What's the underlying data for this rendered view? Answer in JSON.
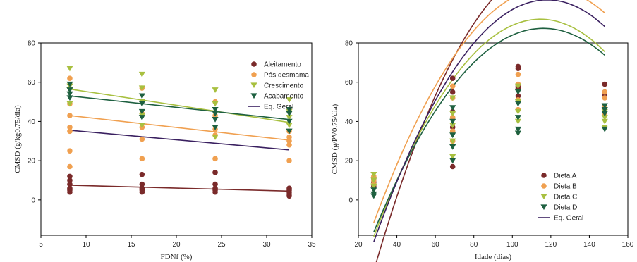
{
  "colors": {
    "dark_red": "#7a2a2a",
    "orange": "#f0a050",
    "yellow_green": "#a8c040",
    "dark_green": "#1e6040",
    "purple": "#3a2060"
  },
  "chart_data": [
    {
      "type": "scatter",
      "xlabel": "FDNf (%)",
      "ylabel": "CMSD (g/kg0.75/dia)",
      "xlim": [
        5,
        35
      ],
      "ylim": [
        -18,
        80
      ],
      "xticks": [
        5,
        10,
        15,
        20,
        25,
        30,
        35
      ],
      "yticks": [
        0,
        20,
        40,
        60,
        80
      ],
      "legend_position": "top-right",
      "series": [
        {
          "name": "Aleitamento",
          "marker": "circle",
          "color": "#7a2a2a",
          "points": [
            [
              8.2,
              12
            ],
            [
              8.2,
              10
            ],
            [
              8.2,
              8
            ],
            [
              8.2,
              6
            ],
            [
              8.2,
              5
            ],
            [
              8.2,
              4
            ],
            [
              16.2,
              13
            ],
            [
              16.2,
              8
            ],
            [
              16.2,
              6
            ],
            [
              16.2,
              5
            ],
            [
              16.2,
              4
            ],
            [
              24.3,
              14
            ],
            [
              24.3,
              8
            ],
            [
              24.3,
              6
            ],
            [
              24.3,
              5
            ],
            [
              24.3,
              4
            ],
            [
              32.5,
              6
            ],
            [
              32.5,
              5
            ],
            [
              32.5,
              4
            ],
            [
              32.5,
              3
            ],
            [
              32.5,
              2
            ]
          ],
          "fit": [
            [
              8.2,
              7.5
            ],
            [
              32.5,
              4.5
            ]
          ]
        },
        {
          "name": "Pós desmama",
          "marker": "circle",
          "color": "#f0a050",
          "points": [
            [
              8.2,
              62
            ],
            [
              8.2,
              49
            ],
            [
              8.2,
              43
            ],
            [
              8.2,
              37
            ],
            [
              8.2,
              35
            ],
            [
              8.2,
              25
            ],
            [
              8.2,
              17
            ],
            [
              16.2,
              57
            ],
            [
              16.2,
              44
            ],
            [
              16.2,
              37
            ],
            [
              16.2,
              31
            ],
            [
              16.2,
              21
            ],
            [
              24.3,
              50
            ],
            [
              24.3,
              43
            ],
            [
              24.3,
              36
            ],
            [
              24.3,
              33
            ],
            [
              24.3,
              21
            ],
            [
              32.5,
              35
            ],
            [
              32.5,
              32
            ],
            [
              32.5,
              30
            ],
            [
              32.5,
              28
            ],
            [
              32.5,
              20
            ]
          ],
          "fit": [
            [
              8.2,
              43
            ],
            [
              32.5,
              30.5
            ]
          ]
        },
        {
          "name": "Crescimento",
          "marker": "triangle-down",
          "color": "#a8c040",
          "points": [
            [
              8.2,
              67
            ],
            [
              8.2,
              58
            ],
            [
              8.2,
              56
            ],
            [
              8.2,
              49
            ],
            [
              16.2,
              64
            ],
            [
              16.2,
              57
            ],
            [
              16.2,
              50
            ],
            [
              16.2,
              43
            ],
            [
              16.2,
              38
            ],
            [
              24.3,
              56
            ],
            [
              24.3,
              49
            ],
            [
              24.3,
              44
            ],
            [
              24.3,
              37
            ],
            [
              24.3,
              32
            ],
            [
              32.5,
              51
            ],
            [
              32.5,
              45
            ],
            [
              32.5,
              42
            ],
            [
              32.5,
              38
            ]
          ],
          "fit": [
            [
              8.2,
              56.5
            ],
            [
              32.5,
              39.5
            ]
          ]
        },
        {
          "name": "Acabamento",
          "marker": "triangle-down",
          "color": "#1e6040",
          "points": [
            [
              8.2,
              59
            ],
            [
              8.2,
              56
            ],
            [
              8.2,
              54
            ],
            [
              8.2,
              52
            ],
            [
              16.2,
              53
            ],
            [
              16.2,
              49
            ],
            [
              16.2,
              45
            ],
            [
              16.2,
              42
            ],
            [
              24.3,
              46
            ],
            [
              24.3,
              44
            ],
            [
              24.3,
              41
            ],
            [
              24.3,
              37
            ],
            [
              32.5,
              46
            ],
            [
              32.5,
              44
            ],
            [
              32.5,
              40
            ],
            [
              32.5,
              35
            ]
          ],
          "fit": [
            [
              8.2,
              53
            ],
            [
              32.5,
              41
            ]
          ]
        },
        {
          "name": "Eq. Geral",
          "marker": "line",
          "color": "#3a2060",
          "fit": [
            [
              8.2,
              35.5
            ],
            [
              32.5,
              25.5
            ]
          ]
        }
      ]
    },
    {
      "type": "scatter",
      "xlabel": "Idade (dias)",
      "ylabel": "CMSD (g/PV0.75/dia)",
      "xlim": [
        20,
        160
      ],
      "ylim": [
        -18,
        80
      ],
      "xticks": [
        20,
        40,
        60,
        80,
        100,
        120,
        140,
        160
      ],
      "yticks": [
        0,
        20,
        40,
        60,
        80
      ],
      "legend_position": "bottom-right",
      "series": [
        {
          "name": "Dieta A",
          "marker": "circle",
          "color": "#7a2a2a",
          "points": [
            [
              28,
              11
            ],
            [
              28,
              9
            ],
            [
              28,
              7
            ],
            [
              69,
              62
            ],
            [
              69,
              55
            ],
            [
              69,
              45
            ],
            [
              69,
              37
            ],
            [
              69,
              17
            ],
            [
              103,
              68
            ],
            [
              103,
              67
            ],
            [
              103,
              58
            ],
            [
              103,
              57
            ],
            [
              103,
              53
            ],
            [
              148,
              59
            ],
            [
              148,
              55
            ],
            [
              148,
              53
            ],
            [
              148,
              47
            ]
          ],
          "curve": {
            "a": -1.45,
            "b": 0.044,
            "c": -0.000183
          }
        },
        {
          "name": "Dieta B",
          "marker": "circle",
          "color": "#f0a050",
          "points": [
            [
              28,
              12
            ],
            [
              28,
              10
            ],
            [
              28,
              8
            ],
            [
              69,
              58
            ],
            [
              69,
              52
            ],
            [
              69,
              42
            ],
            [
              69,
              35
            ],
            [
              69,
              30
            ],
            [
              103,
              64
            ],
            [
              103,
              59
            ],
            [
              103,
              51
            ],
            [
              103,
              46
            ],
            [
              148,
              55
            ],
            [
              148,
              52
            ],
            [
              148,
              48
            ],
            [
              148,
              44
            ]
          ],
          "curve": {
            "a": -0.97,
            "b": 0.0346,
            "c": -0.000146
          }
        },
        {
          "name": "Dieta C",
          "marker": "triangle-down",
          "color": "#a8c040",
          "points": [
            [
              28,
              13
            ],
            [
              28,
              10
            ],
            [
              28,
              7
            ],
            [
              69,
              52
            ],
            [
              69,
              44
            ],
            [
              69,
              38
            ],
            [
              69,
              30
            ],
            [
              69,
              22
            ],
            [
              103,
              58
            ],
            [
              103,
              50
            ],
            [
              103,
              45
            ],
            [
              103,
              40
            ],
            [
              103,
              34
            ],
            [
              148,
              45
            ],
            [
              148,
              42
            ],
            [
              148,
              40
            ],
            [
              148,
              37
            ]
          ],
          "curve": {
            "a": -1.02,
            "b": 0.0339,
            "c": -0.000148
          }
        },
        {
          "name": "Dieta D",
          "marker": "triangle-down",
          "color": "#1e6040",
          "points": [
            [
              28,
              5
            ],
            [
              28,
              3
            ],
            [
              28,
              2
            ],
            [
              69,
              47
            ],
            [
              69,
              40
            ],
            [
              69,
              33
            ],
            [
              69,
              27
            ],
            [
              69,
              20
            ],
            [
              103,
              55
            ],
            [
              103,
              49
            ],
            [
              103,
              42
            ],
            [
              103,
              36
            ],
            [
              103,
              34
            ],
            [
              148,
              48
            ],
            [
              148,
              46
            ],
            [
              148,
              44
            ],
            [
              148,
              36
            ]
          ],
          "curve": {
            "a": -0.93,
            "b": 0.0311,
            "c": -0.000134
          }
        },
        {
          "name": "Eq. Geral",
          "marker": "line",
          "color": "#3a2060",
          "curve": {
            "a": -1.1,
            "b": 0.0359,
            "c": -0.000152
          }
        }
      ]
    }
  ]
}
